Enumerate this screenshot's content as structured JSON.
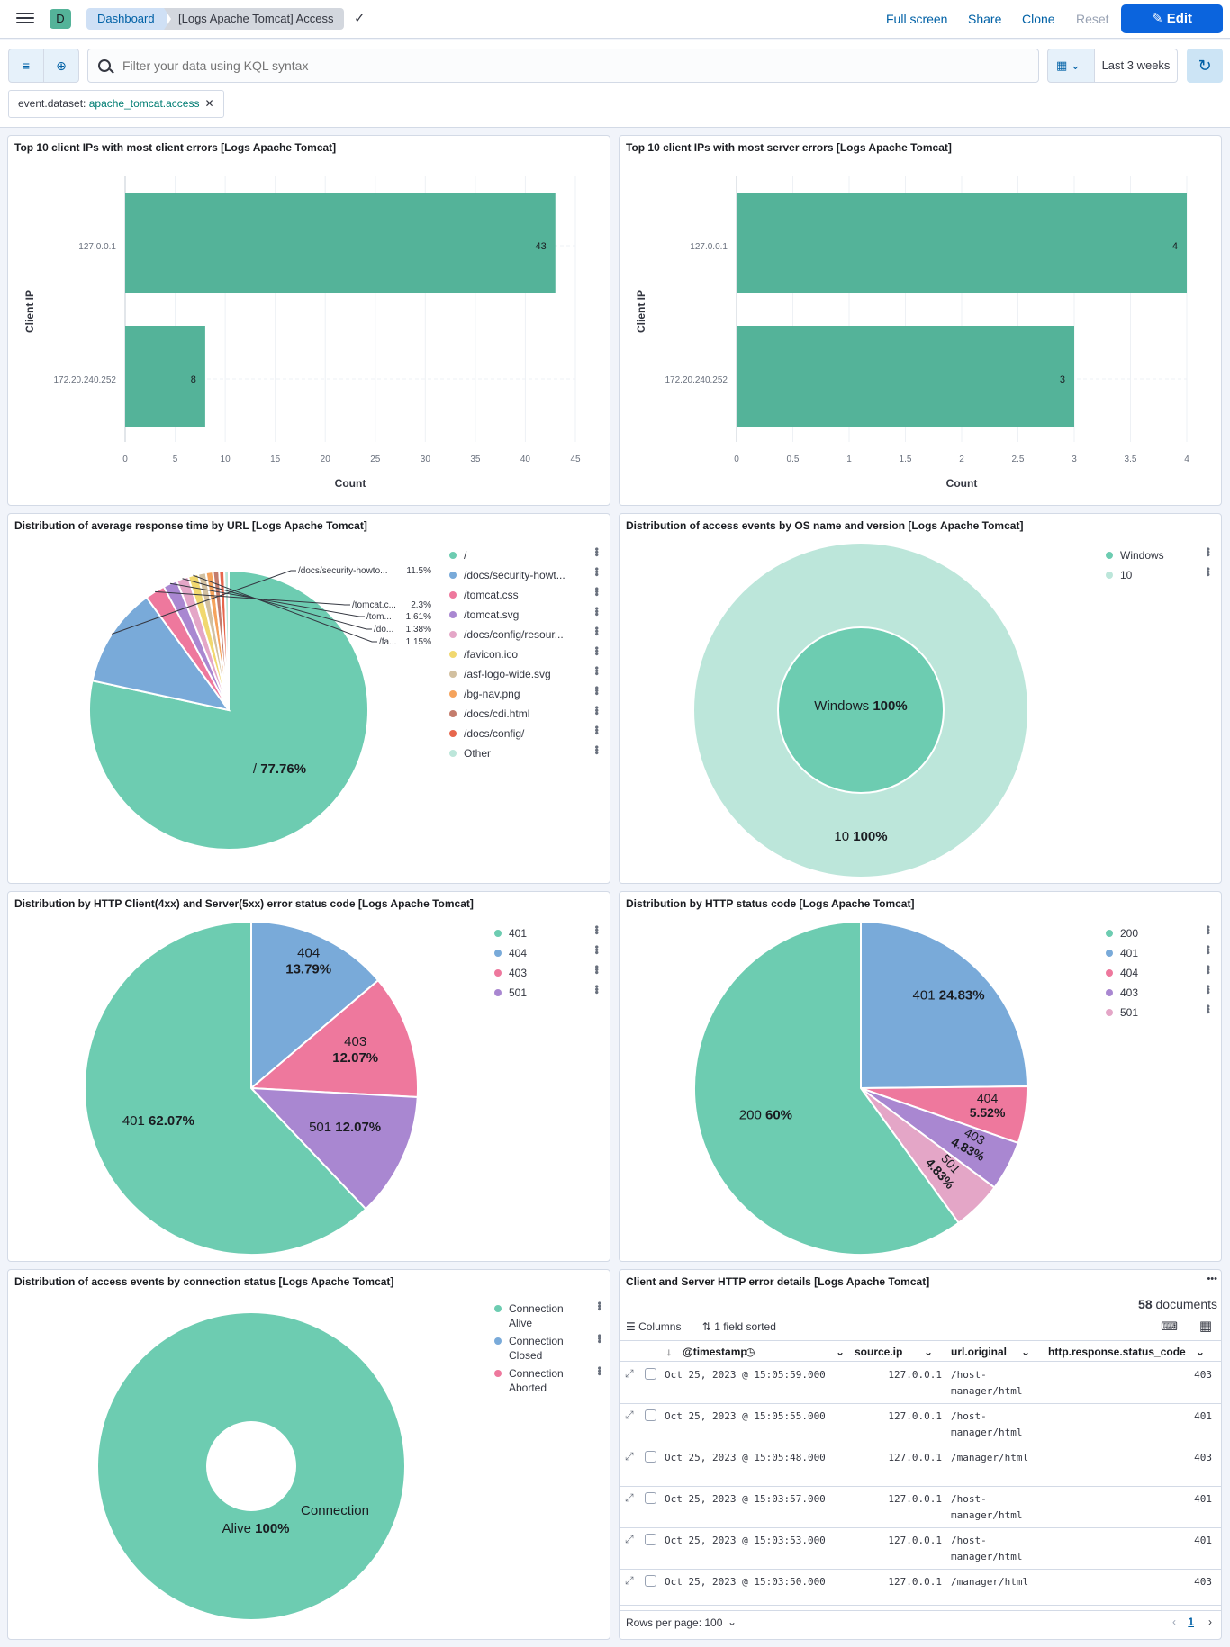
{
  "topbar": {
    "space_initial": "D",
    "breadcrumb_root": "Dashboard",
    "breadcrumb_current": "[Logs Apache Tomcat] Access",
    "links": [
      "Full screen",
      "Share",
      "Clone",
      "Reset"
    ],
    "edit_label": "Edit"
  },
  "query": {
    "placeholder": "Filter your data using KQL syntax",
    "time_range": "Last 3 weeks",
    "filter_key": "event.dataset:",
    "filter_value": "apache_tomcat.access"
  },
  "panels": {
    "p1": {
      "title": "Top 10 client IPs with most client errors [Logs Apache Tomcat]"
    },
    "p2": {
      "title": "Top 10 client IPs with most server errors [Logs Apache Tomcat]"
    },
    "p3": {
      "title": "Distribution of average response time by URL [Logs Apache Tomcat]"
    },
    "p4": {
      "title": "Distribution of access events by OS name and version [Logs Apache Tomcat]"
    },
    "p5": {
      "title": "Distribution by HTTP Client(4xx) and Server(5xx) error status code [Logs Apache Tomcat]"
    },
    "p6": {
      "title": "Distribution by HTTP status code [Logs Apache Tomcat]"
    },
    "p7": {
      "title": "Distribution of access events by connection status [Logs Apache Tomcat]"
    },
    "p8": {
      "title": "Client and Server HTTP error details [Logs Apache Tomcat]"
    }
  },
  "colors": {
    "green": "#54b399",
    "pie_green": "#6dccb1",
    "blue": "#79aad9",
    "pink": "#ee789d",
    "purple": "#a987d1",
    "lightpink": "#e4a6c7",
    "yellow": "#f1d86f",
    "tan": "#d2c0a0",
    "orange": "#f5a35c",
    "red": "#c47c6c",
    "salmon": "#e7664c",
    "mint": "#bce6da"
  },
  "chart_data": [
    {
      "type": "bar",
      "orientation": "horizontal",
      "categories": [
        "127.0.0.1",
        "172.20.240.252"
      ],
      "values": [
        43,
        8
      ],
      "xlabel": "Count",
      "ylabel": "Client IP",
      "xlim": [
        0,
        45
      ],
      "xticks": [
        "0",
        "5",
        "10",
        "15",
        "20",
        "25",
        "30",
        "35",
        "40",
        "45"
      ]
    },
    {
      "type": "bar",
      "orientation": "horizontal",
      "categories": [
        "127.0.0.1",
        "172.20.240.252"
      ],
      "values": [
        4,
        3
      ],
      "xlabel": "Count",
      "ylabel": "Client IP",
      "xlim": [
        0,
        4
      ],
      "xticks": [
        "0",
        "0.5",
        "1",
        "1.5",
        "2",
        "2.5",
        "3",
        "3.5",
        "4"
      ]
    },
    {
      "type": "pie",
      "labels": [
        "/",
        "/docs/security-howto...",
        "/tomcat.c...",
        "/tom...",
        "/do...",
        "/fa..."
      ],
      "values": [
        77.76,
        11.5,
        2.3,
        1.61,
        1.38,
        1.15
      ],
      "value_labels": [
        "77.76%",
        "11.5%",
        "2.3%",
        "1.61%",
        "1.38%",
        "1.15%"
      ],
      "legend": [
        "/",
        "/docs/security-howt...",
        "/tomcat.css",
        "/tomcat.svg",
        "/docs/config/resour...",
        "/favicon.ico",
        "/asf-logo-wide.svg",
        "/bg-nav.png",
        "/docs/cdi.html",
        "/docs/config/",
        "Other"
      ]
    },
    {
      "type": "pie",
      "donut": true,
      "rings": [
        {
          "label": "Windows",
          "value_label": "100%",
          "values": [
            100
          ]
        },
        {
          "label": "10",
          "value_label": "100%",
          "values": [
            100
          ]
        }
      ],
      "legend": [
        "Windows",
        "10"
      ]
    },
    {
      "type": "pie",
      "labels": [
        "401",
        "404",
        "403",
        "501"
      ],
      "values": [
        62.07,
        13.79,
        12.07,
        12.07
      ],
      "value_labels": [
        "62.07%",
        "13.79%",
        "12.07%",
        "12.07%"
      ],
      "legend": [
        "401",
        "404",
        "403",
        "501"
      ]
    },
    {
      "type": "pie",
      "labels": [
        "200",
        "401",
        "404",
        "403",
        "501"
      ],
      "values": [
        60,
        24.83,
        5.52,
        4.83,
        4.83
      ],
      "value_labels": [
        "60%",
        "24.83%",
        "5.52%",
        "4.83%",
        "4.83%"
      ],
      "legend": [
        "200",
        "401",
        "404",
        "403",
        "501"
      ]
    },
    {
      "type": "pie",
      "donut": true,
      "labels": [
        "Connection Alive"
      ],
      "label_parts": [
        "Connection",
        "Alive"
      ],
      "values": [
        100
      ],
      "value_labels": [
        "100%"
      ],
      "legend": [
        "Connection Alive",
        "Connection Closed",
        "Connection Aborted"
      ]
    }
  ],
  "table": {
    "count": "58",
    "count_label": "documents",
    "columns_label": "Columns",
    "sort_label": "1 field sorted",
    "headers": [
      "@timestamp",
      "source.ip",
      "url.original",
      "http.response.status_code"
    ],
    "rows": [
      {
        "ts": "Oct 25, 2023 @ 15:05:59.000",
        "ip": "127.0.0.1",
        "url1": "/host-",
        "url2": "manager/html",
        "code": "403"
      },
      {
        "ts": "Oct 25, 2023 @ 15:05:55.000",
        "ip": "127.0.0.1",
        "url1": "/host-",
        "url2": "manager/html",
        "code": "401"
      },
      {
        "ts": "Oct 25, 2023 @ 15:05:48.000",
        "ip": "127.0.0.1",
        "url1": "/manager/html",
        "url2": "",
        "code": "403"
      },
      {
        "ts": "Oct 25, 2023 @ 15:03:57.000",
        "ip": "127.0.0.1",
        "url1": "/host-",
        "url2": "manager/html",
        "code": "401"
      },
      {
        "ts": "Oct 25, 2023 @ 15:03:53.000",
        "ip": "127.0.0.1",
        "url1": "/host-",
        "url2": "manager/html",
        "code": "401"
      },
      {
        "ts": "Oct 25, 2023 @ 15:03:50.000",
        "ip": "127.0.0.1",
        "url1": "/manager/html",
        "url2": "",
        "code": "403"
      }
    ],
    "rows_per_page": "Rows per page: 100",
    "page": "1"
  }
}
